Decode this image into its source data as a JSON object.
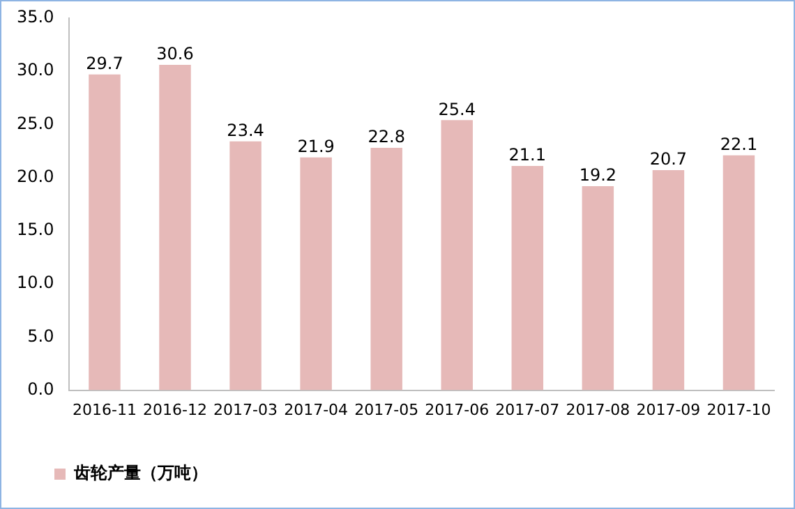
{
  "chart_data": {
    "type": "bar",
    "categories": [
      "2016-11",
      "2016-12",
      "2017-03",
      "2017-04",
      "2017-05",
      "2017-06",
      "2017-07",
      "2017-08",
      "2017-09",
      "2017-10"
    ],
    "series": [
      {
        "name": "齿轮产量（万吨）",
        "color": "#e6b9b8",
        "values": [
          29.7,
          30.6,
          23.4,
          21.9,
          22.8,
          25.4,
          21.1,
          19.2,
          20.7,
          22.1
        ]
      }
    ],
    "ylim": [
      0,
      35
    ],
    "yticks": [
      {
        "value": 0,
        "label": "0.0"
      },
      {
        "value": 5,
        "label": "5.0"
      },
      {
        "value": 10,
        "label": "10.0"
      },
      {
        "value": 15,
        "label": "15.0"
      },
      {
        "value": 20,
        "label": "20.0"
      },
      {
        "value": 25,
        "label": "25.0"
      },
      {
        "value": 30,
        "label": "30.0"
      },
      {
        "value": 35,
        "label": "35.0"
      }
    ],
    "grid": false,
    "legend": "bottom left",
    "data_labels": true
  }
}
